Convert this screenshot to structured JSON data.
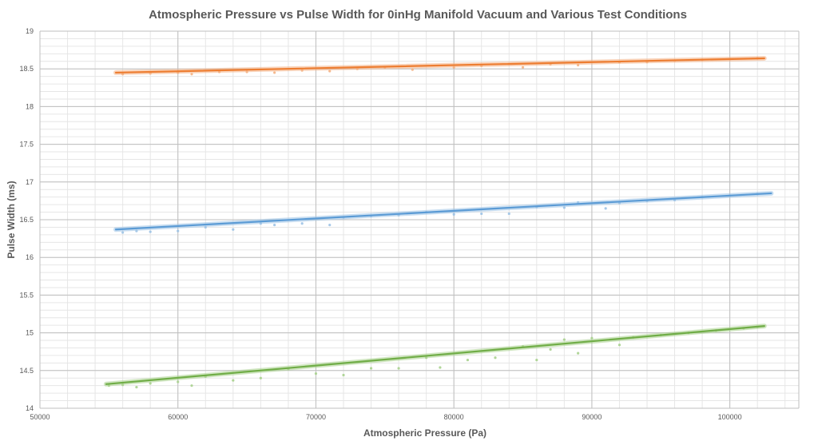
{
  "chart_data": {
    "type": "scatter",
    "title": "Atmospheric Pressure vs Pulse Width for 0inHg Manifold Vacuum and Various Test Conditions",
    "xlabel": "Atmospheric Pressure (Pa)",
    "ylabel": "Pulse Width (ms)",
    "xlim": [
      50000,
      105000
    ],
    "ylim": [
      14,
      19
    ],
    "x_ticks": [
      "50000",
      "60000",
      "70000",
      "80000",
      "90000",
      "100000"
    ],
    "x_tick_values": [
      50000,
      60000,
      70000,
      80000,
      90000,
      100000
    ],
    "y_ticks": [
      "14",
      "14.5",
      "15",
      "15.5",
      "16",
      "16.5",
      "17",
      "17.5",
      "18",
      "18.5",
      "19"
    ],
    "y_tick_values": [
      14,
      14.5,
      15,
      15.5,
      16,
      16.5,
      17,
      17.5,
      18,
      18.5,
      19
    ],
    "grid": true,
    "legend": "none",
    "series": [
      {
        "color": "#ED7D31",
        "marker_color": "#F4B183",
        "trendline": {
          "x": [
            55500,
            102500
          ],
          "y": [
            18.45,
            18.64
          ]
        },
        "points": [
          [
            56000,
            18.43
          ],
          [
            58000,
            18.44
          ],
          [
            60000,
            18.45
          ],
          [
            61000,
            18.43
          ],
          [
            63000,
            18.46
          ],
          [
            65000,
            18.46
          ],
          [
            67000,
            18.45
          ],
          [
            69000,
            18.48
          ],
          [
            71000,
            18.47
          ],
          [
            73000,
            18.5
          ],
          [
            75000,
            18.52
          ],
          [
            77000,
            18.49
          ],
          [
            80000,
            18.52
          ],
          [
            82000,
            18.54
          ],
          [
            85000,
            18.52
          ],
          [
            87000,
            18.56
          ],
          [
            89000,
            18.55
          ],
          [
            92000,
            18.59
          ],
          [
            94000,
            18.59
          ],
          [
            96000,
            18.61
          ],
          [
            98000,
            18.62
          ],
          [
            100000,
            18.63
          ],
          [
            102000,
            18.64
          ]
        ]
      },
      {
        "color": "#5B9BD5",
        "marker_color": "#9DC3E6",
        "trendline": {
          "x": [
            55500,
            103000
          ],
          "y": [
            16.37,
            16.85
          ]
        },
        "points": [
          [
            56000,
            16.33
          ],
          [
            57000,
            16.35
          ],
          [
            58000,
            16.34
          ],
          [
            60000,
            16.35
          ],
          [
            62000,
            16.4
          ],
          [
            64000,
            16.37
          ],
          [
            66000,
            16.45
          ],
          [
            67000,
            16.43
          ],
          [
            69000,
            16.45
          ],
          [
            71000,
            16.43
          ],
          [
            72000,
            16.53
          ],
          [
            74000,
            16.55
          ],
          [
            76000,
            16.56
          ],
          [
            78000,
            16.6
          ],
          [
            80000,
            16.57
          ],
          [
            82000,
            16.58
          ],
          [
            84000,
            16.58
          ],
          [
            86000,
            16.67
          ],
          [
            88000,
            16.66
          ],
          [
            89000,
            16.73
          ],
          [
            91000,
            16.65
          ],
          [
            92000,
            16.72
          ],
          [
            94000,
            16.75
          ],
          [
            96000,
            16.76
          ],
          [
            98000,
            16.8
          ],
          [
            100000,
            16.82
          ],
          [
            102000,
            16.84
          ]
        ]
      },
      {
        "color": "#70AD47",
        "marker_color": "#A9D18E",
        "trendline": {
          "x": [
            54800,
            102500
          ],
          "y": [
            14.32,
            15.09
          ]
        },
        "points": [
          [
            55000,
            14.3
          ],
          [
            56000,
            14.31
          ],
          [
            57000,
            14.28
          ],
          [
            58000,
            14.33
          ],
          [
            60000,
            14.35
          ],
          [
            61000,
            14.3
          ],
          [
            62000,
            14.42
          ],
          [
            64000,
            14.37
          ],
          [
            66000,
            14.4
          ],
          [
            68000,
            14.52
          ],
          [
            70000,
            14.46
          ],
          [
            72000,
            14.44
          ],
          [
            74000,
            14.53
          ],
          [
            76000,
            14.53
          ],
          [
            78000,
            14.67
          ],
          [
            79000,
            14.54
          ],
          [
            81000,
            14.64
          ],
          [
            83000,
            14.67
          ],
          [
            85000,
            14.82
          ],
          [
            86000,
            14.64
          ],
          [
            87000,
            14.78
          ],
          [
            88000,
            14.91
          ],
          [
            89000,
            14.73
          ],
          [
            90000,
            14.93
          ],
          [
            92000,
            14.84
          ],
          [
            93000,
            14.94
          ],
          [
            95000,
            14.97
          ],
          [
            97000,
            15.0
          ],
          [
            99000,
            15.03
          ],
          [
            101000,
            15.06
          ],
          [
            102000,
            15.08
          ]
        ]
      }
    ]
  }
}
